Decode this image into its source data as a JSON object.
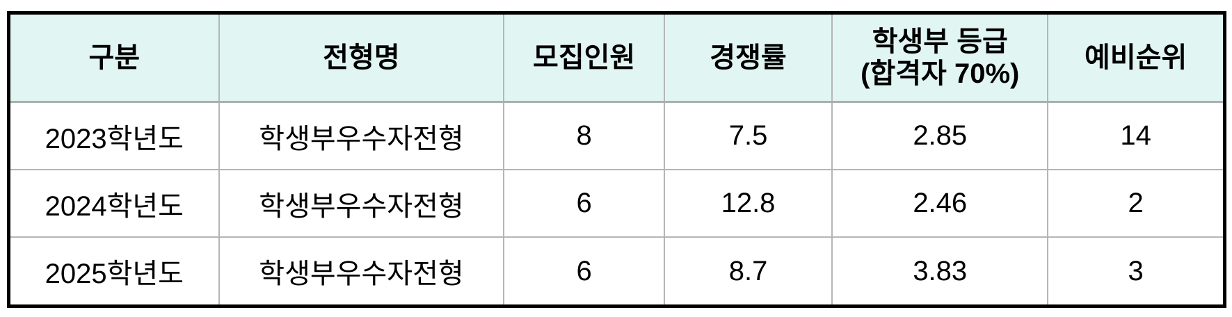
{
  "page": {
    "background_color": "#FFFFFF"
  },
  "table": {
    "style": {
      "header_bg": "#E1F6F2",
      "grid_color": "#B5B5B5",
      "outer_border_color": "#000000",
      "text_color": "#000000"
    },
    "headers": [
      {
        "id": "category",
        "label": "구분"
      },
      {
        "id": "admission_type",
        "label": "전형명"
      },
      {
        "id": "quota",
        "label": "모집인원"
      },
      {
        "id": "competition_ratio",
        "label": "경쟁률"
      },
      {
        "id": "record_grade",
        "label": "학생부 등급\n(합격자 70%)"
      },
      {
        "id": "waitlist_rank",
        "label": "예비순위"
      }
    ],
    "rows": [
      {
        "cells": [
          "2023학년도",
          "학생부우수자전형",
          "8",
          "7.5",
          "2.85",
          "14"
        ]
      },
      {
        "cells": [
          "2024학년도",
          "학생부우수자전형",
          "6",
          "12.8",
          "2.46",
          "2"
        ]
      },
      {
        "cells": [
          "2025학년도",
          "학생부우수자전형",
          "6",
          "8.7",
          "3.83",
          "3"
        ]
      }
    ]
  }
}
